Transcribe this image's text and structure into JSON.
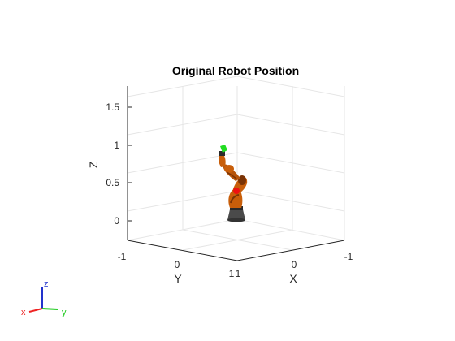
{
  "figure": {
    "title": "Original Robot Position",
    "axis_labels": {
      "x": "X",
      "y": "Y",
      "z": "Z"
    },
    "z_ticks": [
      "0",
      "0.5",
      "1",
      "1.5"
    ],
    "y_ticks": [
      "-1",
      "0",
      "1"
    ],
    "x_ticks": [
      "1",
      "0",
      "-1"
    ],
    "triad_labels": {
      "x": "x",
      "y": "y",
      "z": "z"
    }
  },
  "colors": {
    "background": "#ffffff",
    "grid": "#e6e6e6",
    "axis": "#262626",
    "robot_link": "#c85e0a",
    "robot_link_dark": "#7a3305",
    "robot_joint": "#2a2a2a",
    "base": "#4a4a4a",
    "end_effector": "#22dd22",
    "marker": "#ee1111",
    "triad_x": "#ee2222",
    "triad_y": "#22cc22",
    "triad_z": "#2233cc"
  }
}
